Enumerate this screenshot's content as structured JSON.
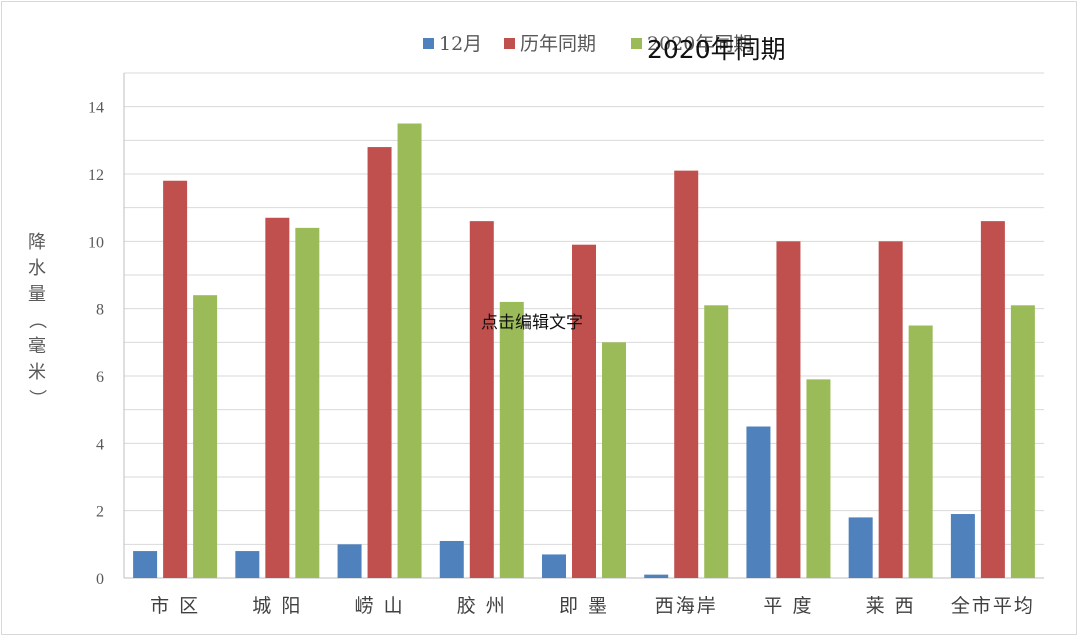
{
  "chart_data": {
    "type": "bar",
    "categories": [
      "市 区",
      "城 阳",
      "崂 山",
      "胶 州",
      "即 墨",
      "西海岸",
      "平 度",
      "莱 西",
      "全市平均"
    ],
    "series": [
      {
        "name": "12月",
        "color": "#4f81bd",
        "values": [
          0.8,
          0.8,
          1.0,
          1.1,
          0.7,
          0.1,
          4.5,
          1.8,
          1.9
        ]
      },
      {
        "name": "历年同期",
        "color": "#c0504d",
        "values": [
          11.8,
          10.7,
          12.8,
          10.6,
          9.9,
          12.1,
          10.0,
          10.0,
          10.6
        ]
      },
      {
        "name": "2020年同期",
        "color": "#9bbb59",
        "values": [
          8.4,
          10.4,
          13.5,
          8.2,
          7.0,
          8.1,
          5.9,
          7.5,
          8.1
        ]
      }
    ],
    "ylabel": "降水量（毫米）",
    "ylim": [
      0,
      15
    ],
    "yticks": [
      "0",
      "2",
      "4",
      "6",
      "8",
      "10",
      "12",
      "14"
    ],
    "legend_position": "top",
    "grid": true
  },
  "overlay": {
    "title_text": "2020年同期",
    "edit_hint": "点击编辑文字"
  }
}
